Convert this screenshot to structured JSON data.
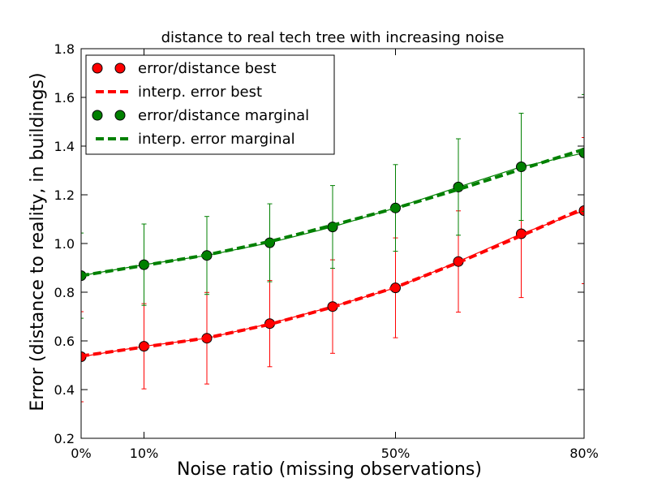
{
  "chart_data": {
    "type": "line",
    "title": "distance to real tech tree with increasing noise",
    "xlabel": "Noise ratio (missing observations)",
    "ylabel": "Error (distance to reality, in buildings)",
    "xlim": [
      0,
      80
    ],
    "ylim": [
      0.2,
      1.8
    ],
    "x": [
      0,
      10,
      20,
      30,
      40,
      50,
      60,
      70,
      80
    ],
    "x_ticks": [
      0,
      10,
      50,
      80
    ],
    "x_tick_labels": [
      "0%",
      "10%",
      "50%",
      "80%"
    ],
    "y_ticks": [
      0.2,
      0.4,
      0.6,
      0.8,
      1.0,
      1.2,
      1.4,
      1.6,
      1.8
    ],
    "y_tick_labels": [
      "0.2",
      "0.4",
      "0.6",
      "0.8",
      "1.0",
      "1.2",
      "1.4",
      "1.6",
      "1.8"
    ],
    "grid": false,
    "legend_position": "top-left",
    "series": [
      {
        "name": "error/distance best",
        "kind": "errorbar",
        "color": "#ff0000",
        "marker": "circle",
        "values": [
          0.535,
          0.578,
          0.611,
          0.671,
          0.741,
          0.818,
          0.926,
          1.04,
          1.135
        ],
        "errors": [
          0.185,
          0.175,
          0.188,
          0.177,
          0.192,
          0.205,
          0.208,
          0.262,
          0.3
        ]
      },
      {
        "name": "interp. error best",
        "kind": "dashed",
        "color": "#ff0000",
        "values": [
          0.538,
          0.575,
          0.612,
          0.668,
          0.739,
          0.82,
          0.922,
          1.032,
          1.145
        ]
      },
      {
        "name": "error/distance marginal",
        "kind": "errorbar",
        "color": "#008000",
        "marker": "circle",
        "values": [
          0.868,
          0.913,
          0.951,
          1.003,
          1.068,
          1.146,
          1.232,
          1.315,
          1.372
        ],
        "errors": [
          0.175,
          0.167,
          0.16,
          0.16,
          0.17,
          0.178,
          0.198,
          0.22,
          0.24
        ]
      },
      {
        "name": "interp. error marginal",
        "kind": "dashed",
        "color": "#008000",
        "values": [
          0.868,
          0.91,
          0.953,
          1.008,
          1.075,
          1.145,
          1.222,
          1.305,
          1.387
        ]
      }
    ]
  }
}
